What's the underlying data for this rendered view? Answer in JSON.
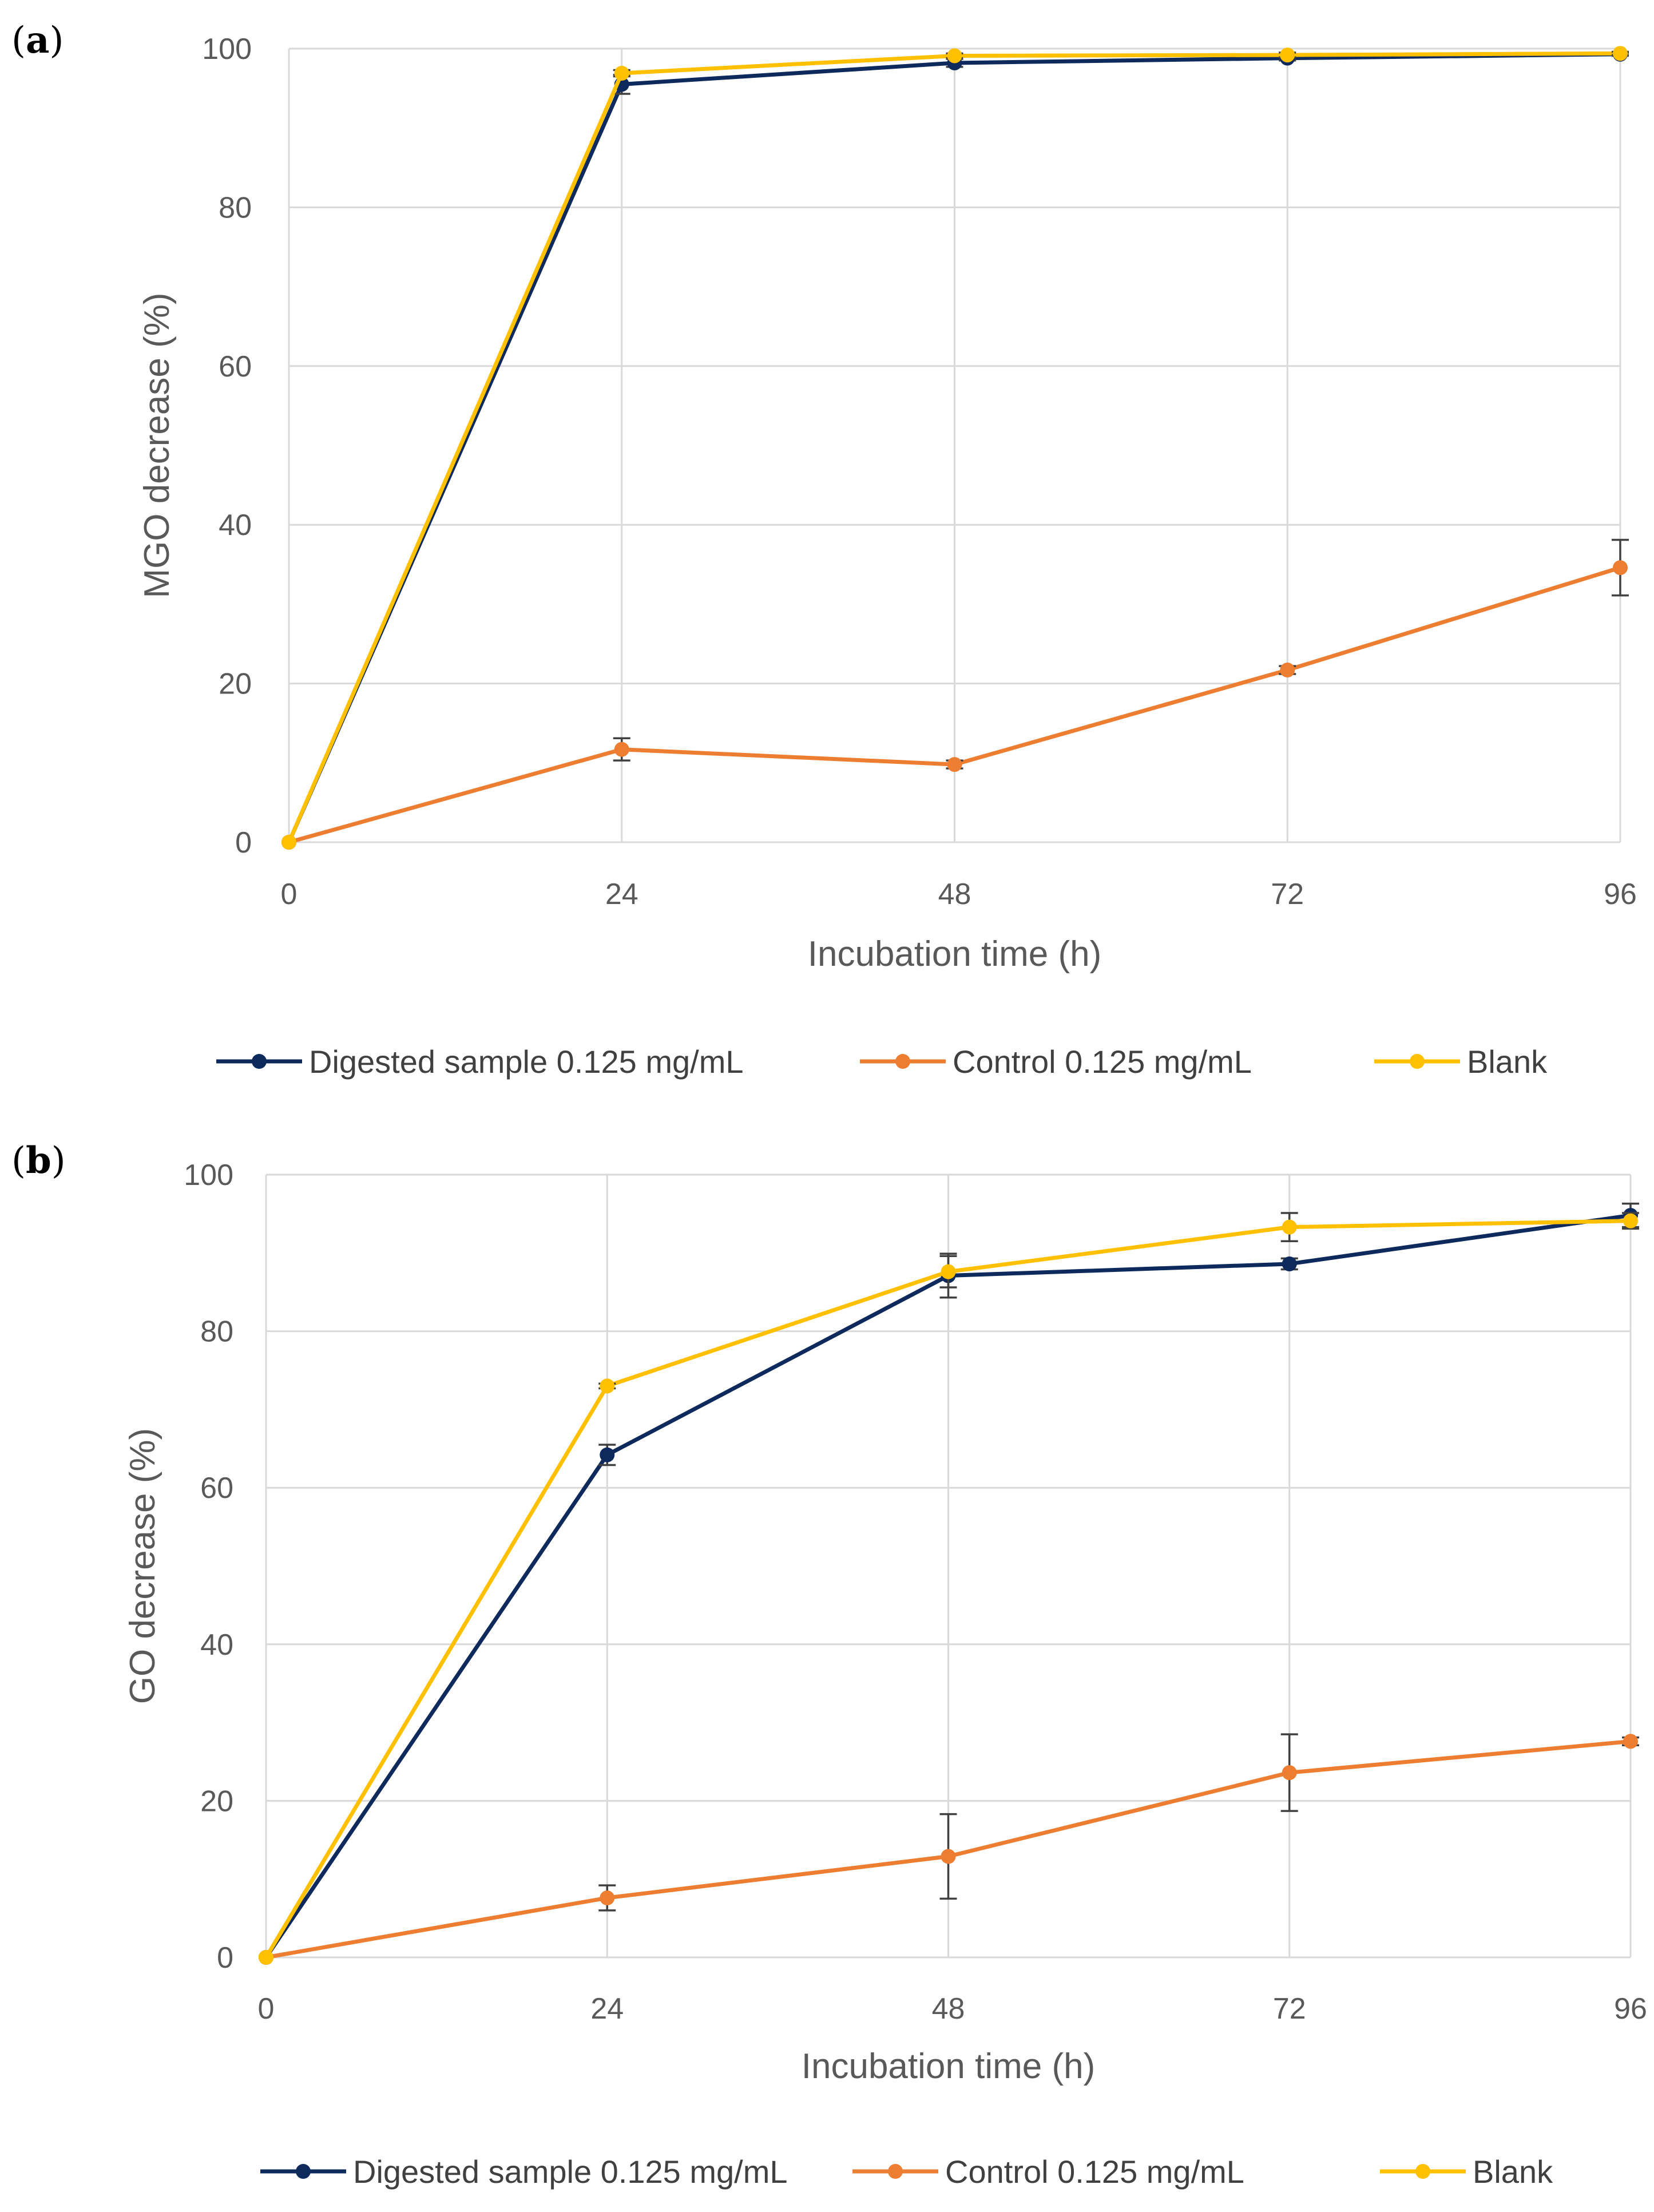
{
  "chart_data": [
    {
      "panel_label": "a",
      "type": "line",
      "xlabel": "Incubation time (h)",
      "ylabel": "MGO  decrease (%)",
      "x": [
        0,
        24,
        48,
        72,
        96
      ],
      "x_ticks": [
        "0",
        "24",
        "48",
        "72",
        "96"
      ],
      "y_ticks": [
        "0",
        "20",
        "40",
        "60",
        "80",
        "100"
      ],
      "xlim": [
        0,
        96
      ],
      "ylim": [
        0,
        100
      ],
      "grid": true,
      "legend_position": "bottom",
      "series": [
        {
          "name": "Digested sample 0.125 mg/mL",
          "color": "#0e2a5c",
          "values": [
            0,
            95.5,
            98.2,
            98.8,
            99.3
          ],
          "errors": [
            0,
            1.2,
            0.5,
            0.3,
            0.2
          ]
        },
        {
          "name": "Control  0.125 mg/mL",
          "color": "#ed7d31",
          "values": [
            0,
            11.7,
            9.8,
            21.7,
            34.6
          ],
          "errors": [
            0,
            1.4,
            0.5,
            0.5,
            3.5
          ]
        },
        {
          "name": "Blank",
          "color": "#ffc000",
          "values": [
            0,
            96.9,
            99.1,
            99.2,
            99.4
          ],
          "errors": [
            0,
            0.4,
            0.3,
            0.3,
            0.2
          ]
        }
      ]
    },
    {
      "panel_label": "b",
      "type": "line",
      "xlabel": "Incubation time (h)",
      "ylabel": "GO decrease (%)",
      "x": [
        0,
        24,
        48,
        72,
        96
      ],
      "x_ticks": [
        "0",
        "24",
        "48",
        "72",
        "96"
      ],
      "y_ticks": [
        "0",
        "20",
        "40",
        "60",
        "80",
        "100"
      ],
      "xlim": [
        0,
        96
      ],
      "ylim": [
        0,
        100
      ],
      "grid": true,
      "legend_position": "bottom",
      "series": [
        {
          "name": "Digested sample 0.125 mg/mL",
          "color": "#0e2a5c",
          "values": [
            0,
            64.2,
            87.1,
            88.6,
            94.8
          ],
          "errors": [
            0,
            1.3,
            2.8,
            0.7,
            1.5
          ]
        },
        {
          "name": "Control  0.125 mg/mL",
          "color": "#ed7d31",
          "values": [
            0,
            7.6,
            12.9,
            23.6,
            27.6
          ],
          "errors": [
            0,
            1.6,
            5.4,
            4.9,
            0.5
          ]
        },
        {
          "name": "Blank",
          "color": "#ffc000",
          "values": [
            0,
            73.0,
            87.6,
            93.3,
            94.1
          ],
          "errors": [
            0,
            0.3,
            2.0,
            1.8,
            1.0
          ]
        }
      ]
    }
  ]
}
